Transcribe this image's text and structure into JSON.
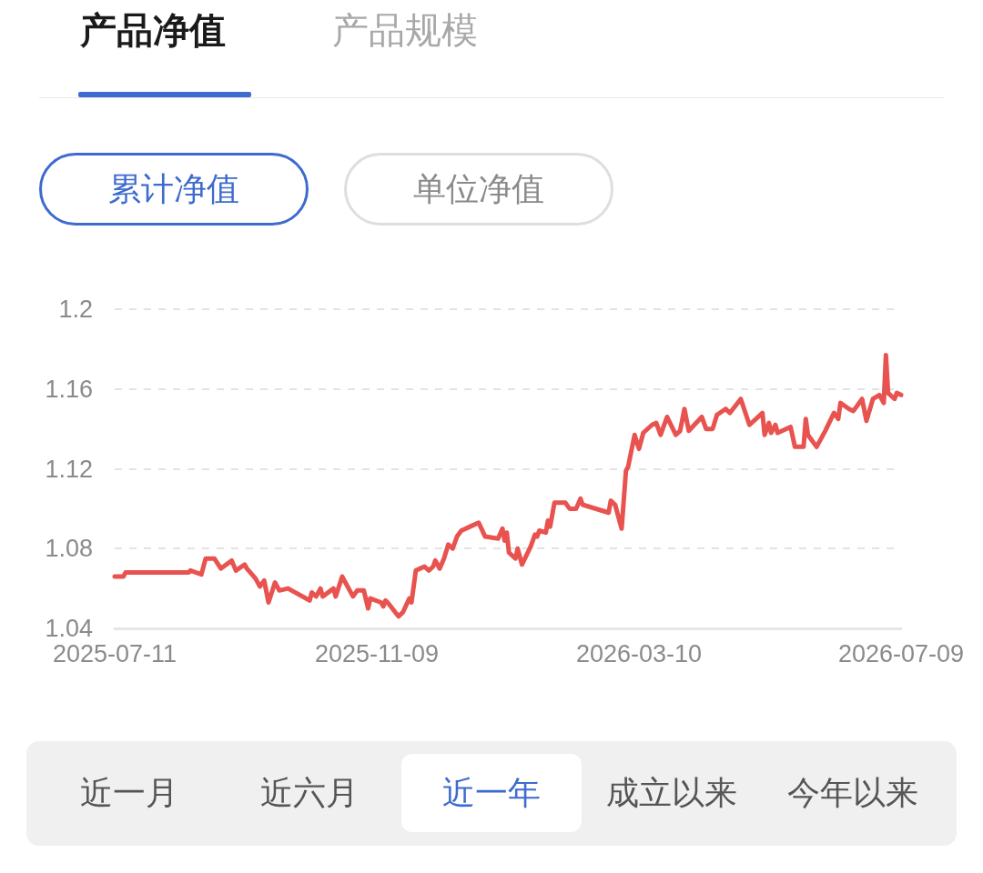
{
  "chart_data": {
    "type": "line",
    "annotations": [
      "产品净值",
      "产品规模",
      "累计净值",
      "单位净值",
      "近一月",
      "近六月",
      "近一年",
      "成立以来",
      "今年以来"
    ],
    "x": [
      "2025-07-11",
      "2025-07-15",
      "2025-07-16",
      "2025-08-14",
      "2025-08-15",
      "2025-08-20",
      "2025-08-22",
      "2025-08-26",
      "2025-08-29",
      "2025-09-03",
      "2025-09-05",
      "2025-09-09",
      "2025-09-10",
      "2025-09-14",
      "2025-09-16",
      "2025-09-18",
      "2025-09-20",
      "2025-09-23",
      "2025-09-25",
      "2025-09-29",
      "2025-10-09",
      "2025-10-10",
      "2025-10-12",
      "2025-10-14",
      "2025-10-15",
      "2025-10-20",
      "2025-10-21",
      "2025-10-24",
      "2025-10-29",
      "2025-10-31",
      "2025-11-03",
      "2025-11-05",
      "2025-11-06",
      "2025-11-11",
      "2025-11-12",
      "2025-11-13",
      "2025-11-14",
      "2025-11-19",
      "2025-11-21",
      "2025-11-24",
      "2025-11-25",
      "2025-11-27",
      "2025-12-01",
      "2025-12-03",
      "2025-12-05",
      "2025-12-06",
      "2025-12-08",
      "2025-12-10",
      "2025-12-12",
      "2025-12-14",
      "2025-12-16",
      "2025-12-18",
      "2025-12-22",
      "2025-12-26",
      "2025-12-29",
      "2026-01-04",
      "2026-01-06",
      "2026-01-07",
      "2026-01-08",
      "2026-01-09",
      "2026-01-12",
      "2026-01-13",
      "2026-01-15",
      "2026-01-19",
      "2026-01-21",
      "2026-01-22",
      "2026-01-23",
      "2026-01-26",
      "2026-01-27",
      "2026-01-28",
      "2026-01-30",
      "2026-02-04",
      "2026-02-06",
      "2026-02-09",
      "2026-02-11",
      "2026-02-12",
      "2026-02-24",
      "2026-02-25",
      "2026-02-27",
      "2026-03-02",
      "2026-03-04",
      "2026-03-05",
      "2026-03-08",
      "2026-03-10",
      "2026-03-12",
      "2026-03-16",
      "2026-03-18",
      "2026-03-20",
      "2026-03-23",
      "2026-03-27",
      "2026-03-29",
      "2026-03-31",
      "2026-04-02",
      "2026-04-08",
      "2026-04-10",
      "2026-04-13",
      "2026-04-15",
      "2026-04-19",
      "2026-04-21",
      "2026-04-26",
      "2026-04-30",
      "2026-05-06",
      "2026-05-07",
      "2026-05-09",
      "2026-05-10",
      "2026-05-12",
      "2026-05-13",
      "2026-05-19",
      "2026-05-21",
      "2026-05-25",
      "2026-05-26",
      "2026-05-27",
      "2026-05-31",
      "2026-06-04",
      "2026-06-08",
      "2026-06-10",
      "2026-06-11",
      "2026-06-15",
      "2026-06-17",
      "2026-06-21",
      "2026-06-23",
      "2026-06-26",
      "2026-06-29",
      "2026-07-01",
      "2026-07-02",
      "2026-07-03",
      "2026-07-06",
      "2026-07-07",
      "2026-07-09"
    ],
    "series": [
      {
        "color": "#e8534f",
        "values": [
          1.066,
          1.066,
          1.068,
          1.068,
          1.069,
          1.067,
          1.075,
          1.075,
          1.07,
          1.074,
          1.069,
          1.072,
          1.07,
          1.065,
          1.061,
          1.064,
          1.053,
          1.063,
          1.059,
          1.06,
          1.054,
          1.058,
          1.056,
          1.06,
          1.056,
          1.06,
          1.056,
          1.066,
          1.056,
          1.059,
          1.059,
          1.05,
          1.055,
          1.053,
          1.051,
          1.054,
          1.053,
          1.046,
          1.048,
          1.055,
          1.053,
          1.069,
          1.071,
          1.069,
          1.071,
          1.074,
          1.07,
          1.075,
          1.082,
          1.08,
          1.086,
          1.089,
          1.091,
          1.093,
          1.086,
          1.085,
          1.09,
          1.084,
          1.088,
          1.078,
          1.075,
          1.08,
          1.072,
          1.081,
          1.087,
          1.086,
          1.089,
          1.088,
          1.094,
          1.091,
          1.103,
          1.103,
          1.1,
          1.1,
          1.105,
          1.102,
          1.098,
          1.104,
          1.102,
          1.09,
          1.119,
          1.121,
          1.137,
          1.13,
          1.138,
          1.142,
          1.143,
          1.137,
          1.146,
          1.137,
          1.139,
          1.15,
          1.139,
          1.146,
          1.14,
          1.14,
          1.147,
          1.15,
          1.148,
          1.155,
          1.142,
          1.148,
          1.137,
          1.143,
          1.138,
          1.142,
          1.138,
          1.141,
          1.131,
          1.131,
          1.145,
          1.137,
          1.131,
          1.139,
          1.148,
          1.145,
          1.153,
          1.15,
          1.149,
          1.155,
          1.144,
          1.155,
          1.157,
          1.153,
          1.177,
          1.158,
          1.155,
          1.158,
          1.157
        ]
      }
    ],
    "xlim": [
      "2025-07-11",
      "2026-07-09"
    ],
    "xticks": [
      "2025-07-11",
      "2025-11-09",
      "2026-03-10",
      "2026-07-09"
    ],
    "ylim": [
      1.04,
      1.2
    ],
    "yticks": [
      1.04,
      1.08,
      1.12,
      1.16,
      1.2
    ],
    "grid": "y",
    "marker": "none",
    "line_style": "solid"
  }
}
